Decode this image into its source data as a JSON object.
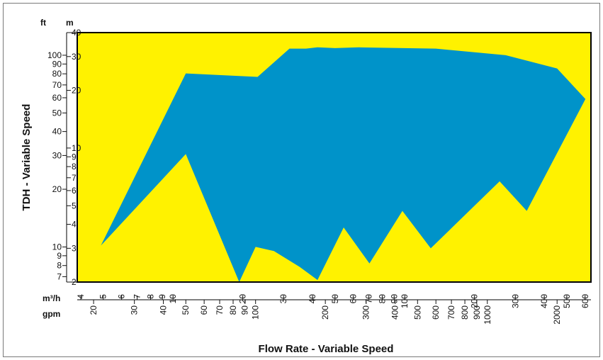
{
  "chart_data": {
    "type": "area",
    "xlabel": "Flow Rate - Variable Speed",
    "ylabel": "TDH - Variable Speed",
    "x_scale": "log",
    "y_scale": "log",
    "xlim_gpm": [
      17,
      2800
    ],
    "ylim_m": [
      2,
      40
    ],
    "y_units": {
      "ft": "ft",
      "m": "m"
    },
    "x_units": {
      "m3h": "m³/h",
      "gpm": "gpm"
    },
    "y_ticks_ft": [
      "100",
      "90",
      "80",
      "70",
      "60",
      "50",
      "40",
      "30",
      "20",
      "10",
      "9",
      "8",
      "7"
    ],
    "y_ticks_m": [
      "40",
      "30",
      "20",
      "10",
      "9",
      "8",
      "7",
      "6",
      "5",
      "4",
      "3",
      "2"
    ],
    "x_ticks_m3h": [
      "4",
      "5",
      "6",
      "7",
      "8",
      "9",
      "10",
      "20",
      "30",
      "40",
      "50",
      "60",
      "70",
      "80",
      "90",
      "100",
      "200",
      "300",
      "400",
      "500",
      "600"
    ],
    "x_ticks_gpm": [
      "20",
      "30",
      "40",
      "50",
      "60",
      "70",
      "80",
      "90",
      "100",
      "200",
      "300",
      "400",
      "500",
      "600",
      "700",
      "800",
      "900",
      "1000",
      "2000"
    ],
    "background_color": "#fff200",
    "region_color": "#0093c9",
    "region_outline_gpm_m": [
      [
        21.5,
        3.1
      ],
      [
        50,
        9.3
      ],
      [
        85,
        2.0
      ],
      [
        100,
        3.05
      ],
      [
        120,
        2.9
      ],
      [
        155,
        2.4
      ],
      [
        185,
        2.05
      ],
      [
        240,
        3.85
      ],
      [
        310,
        2.5
      ],
      [
        430,
        4.7
      ],
      [
        570,
        3.0
      ],
      [
        1130,
        6.7
      ],
      [
        1480,
        4.7
      ],
      [
        2650,
        18.0
      ],
      [
        2000,
        26.0
      ],
      [
        1200,
        30.5
      ],
      [
        600,
        33.0
      ],
      [
        280,
        33.5
      ],
      [
        220,
        33.2
      ],
      [
        185,
        33.5
      ],
      [
        165,
        33.0
      ],
      [
        140,
        33.0
      ],
      [
        102,
        23.5
      ],
      [
        50,
        24.5
      ]
    ]
  }
}
